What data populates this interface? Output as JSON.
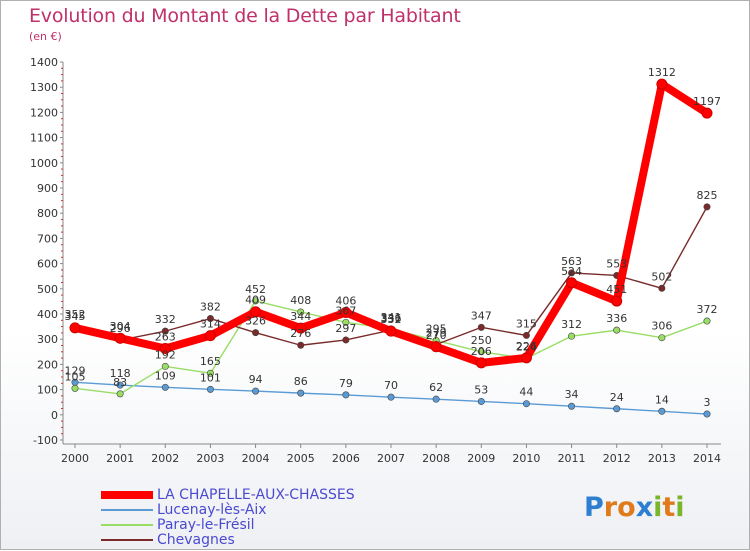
{
  "title": "Evolution du Montant de la Dette par Habitant",
  "subtitle": "(en €)",
  "logo": {
    "text": "Proxiti",
    "letters": [
      "P",
      "r",
      "o",
      "x",
      "i",
      "t",
      "i"
    ],
    "colors": [
      "#2f7fd0",
      "#e07a1a",
      "#e07a1a",
      "#2f7fd0",
      "#7ab52a",
      "#e07a1a",
      "#7ab52a"
    ]
  },
  "chart_data": {
    "type": "line",
    "title": "Evolution du Montant de la Dette par Habitant",
    "ylabel": "(en €)",
    "xlabel": "",
    "x": [
      "2000",
      "2001",
      "2002",
      "2003",
      "2004",
      "2005",
      "2006",
      "2007",
      "2008",
      "2009",
      "2010",
      "2011",
      "2012",
      "2013",
      "2014"
    ],
    "yticks": [
      "-100",
      "0",
      "100",
      "200",
      "300",
      "400",
      "500",
      "600",
      "700",
      "800",
      "900",
      "1000",
      "1100",
      "1200",
      "1300",
      "1400"
    ],
    "ylim": [
      -100,
      1400
    ],
    "grid": false,
    "legend_position": "bottom-left",
    "series": [
      {
        "name": "LA CHAPELLE-AUX-CHASSES",
        "color": "#ff0000",
        "values": [
          345,
          304,
          263,
          314,
          409,
          344,
          406,
          332,
          270,
          206,
          226,
          524,
          451,
          1312,
          1197
        ]
      },
      {
        "name": "Lucenay-lès-Aix",
        "color": "#5b9bd5",
        "values": [
          129,
          118,
          109,
          101,
          94,
          86,
          79,
          70,
          62,
          53,
          44,
          34,
          24,
          14,
          3
        ]
      },
      {
        "name": "Paray-le-Frésil",
        "color": "#99dd66",
        "values": [
          105,
          83,
          192,
          165,
          452,
          408,
          367,
          341,
          295,
          250,
          224,
          312,
          336,
          306,
          372
        ]
      },
      {
        "name": "Chevagnes",
        "color": "#7a2a2a",
        "values": [
          352,
          296,
          332,
          382,
          326,
          276,
          297,
          336,
          279,
          347,
          315,
          563,
          553,
          502,
          825
        ]
      }
    ]
  }
}
